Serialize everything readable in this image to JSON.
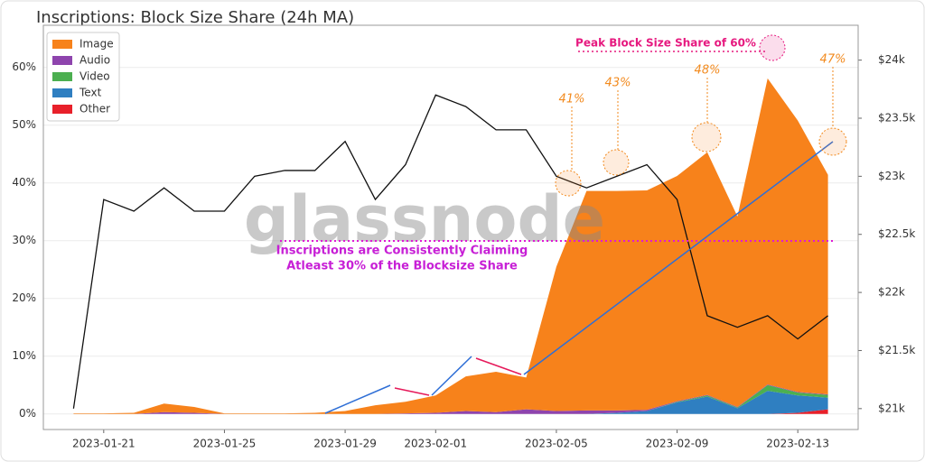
{
  "chart_data": {
    "type": "stacked_area",
    "title": "Inscriptions: Block Size Share (24h MA)",
    "watermark": "glassnode",
    "annotations": [
      "Peak Block Size Share of 60%",
      "Inscriptions are Consistently Claiming",
      "Atleast 30% of the Blocksize Share",
      "41%",
      "43%",
      "48%",
      "47%"
    ],
    "x": [
      "2023-01-20",
      "2023-01-21",
      "2023-01-22",
      "2023-01-23",
      "2023-01-24",
      "2023-01-25",
      "2023-01-26",
      "2023-01-27",
      "2023-01-28",
      "2023-01-29",
      "2023-01-30",
      "2023-01-31",
      "2023-02-01",
      "2023-02-02",
      "2023-02-03",
      "2023-02-04",
      "2023-02-05",
      "2023-02-06",
      "2023-02-07",
      "2023-02-08",
      "2023-02-09",
      "2023-02-10",
      "2023-02-11",
      "2023-02-12",
      "2023-02-13",
      "2023-02-14"
    ],
    "series": [
      {
        "name": "Image",
        "color": "#f7821b",
        "values": [
          0.1,
          0.1,
          0.2,
          1.5,
          1.0,
          0.1,
          0.1,
          0.1,
          0.2,
          0.5,
          1.5,
          2.0,
          3,
          6,
          7,
          5.5,
          25,
          38,
          38,
          38,
          39,
          42,
          33,
          53,
          47,
          38
        ]
      },
      {
        "name": "Audio",
        "color": "#8e44ad",
        "values": [
          0,
          0,
          0,
          0.3,
          0.2,
          0,
          0,
          0,
          0,
          0,
          0,
          0.1,
          0.2,
          0.5,
          0.3,
          0.8,
          0.5,
          0.6,
          0.4,
          0.2,
          0.1,
          0.1,
          0.1,
          0.1,
          0.1,
          0.1
        ]
      },
      {
        "name": "Video",
        "color": "#4caf50",
        "values": [
          0,
          0,
          0,
          0,
          0,
          0,
          0,
          0,
          0,
          0,
          0,
          0,
          0,
          0,
          0,
          0,
          0,
          0,
          0,
          0,
          0.1,
          0.2,
          0.1,
          1,
          0.5,
          0.5
        ]
      },
      {
        "name": "Text",
        "color": "#2f7fc1",
        "values": [
          0,
          0,
          0,
          0,
          0,
          0,
          0,
          0,
          0,
          0,
          0,
          0,
          0,
          0,
          0,
          0,
          0,
          0,
          0.2,
          0.5,
          2,
          3,
          1,
          4,
          3,
          2
        ]
      },
      {
        "name": "Other",
        "color": "#e8202a",
        "values": [
          0,
          0,
          0,
          0,
          0,
          0,
          0,
          0,
          0,
          0,
          0,
          0,
          0,
          0,
          0,
          0,
          0,
          0,
          0,
          0,
          0,
          0,
          0,
          0,
          0.2,
          0.8
        ]
      }
    ],
    "price": {
      "color": "#111111",
      "axis": "y2",
      "values": [
        21000,
        22800,
        22700,
        22900,
        22700,
        22700,
        23000,
        23050,
        23050,
        23300,
        22800,
        23100,
        23700,
        23600,
        23400,
        23400,
        23000,
        22900,
        23000,
        23100,
        22800,
        21800,
        21700,
        21800,
        21600,
        21800
      ]
    },
    "xlim": [
      "2023-01-19",
      "2023-02-15"
    ],
    "xticks": [
      "2023-01-21",
      "2023-01-25",
      "2023-01-29",
      "2023-02-01",
      "2023-02-05",
      "2023-02-09",
      "2023-02-13"
    ],
    "ylim": [
      -2.7,
      67.3
    ],
    "yticks": [
      {
        "value": 0,
        "label": "0%"
      },
      {
        "value": 10,
        "label": "10%"
      },
      {
        "value": 20,
        "label": "20%"
      },
      {
        "value": 30,
        "label": "30%"
      },
      {
        "value": 40,
        "label": "40%"
      },
      {
        "value": 50,
        "label": "50%"
      },
      {
        "value": 60,
        "label": "60%"
      }
    ],
    "y2lim": [
      20820,
      24300
    ],
    "y2ticks": [
      {
        "value": 21000,
        "label": "$21k"
      },
      {
        "value": 21500,
        "label": "$21.5k"
      },
      {
        "value": 22000,
        "label": "$22k"
      },
      {
        "value": 22500,
        "label": "$22.5k"
      },
      {
        "value": 23000,
        "label": "$23k"
      },
      {
        "value": 23500,
        "label": "$23.5k"
      },
      {
        "value": 24000,
        "label": "$24k"
      }
    ],
    "grid": true,
    "legend": "upper left"
  }
}
